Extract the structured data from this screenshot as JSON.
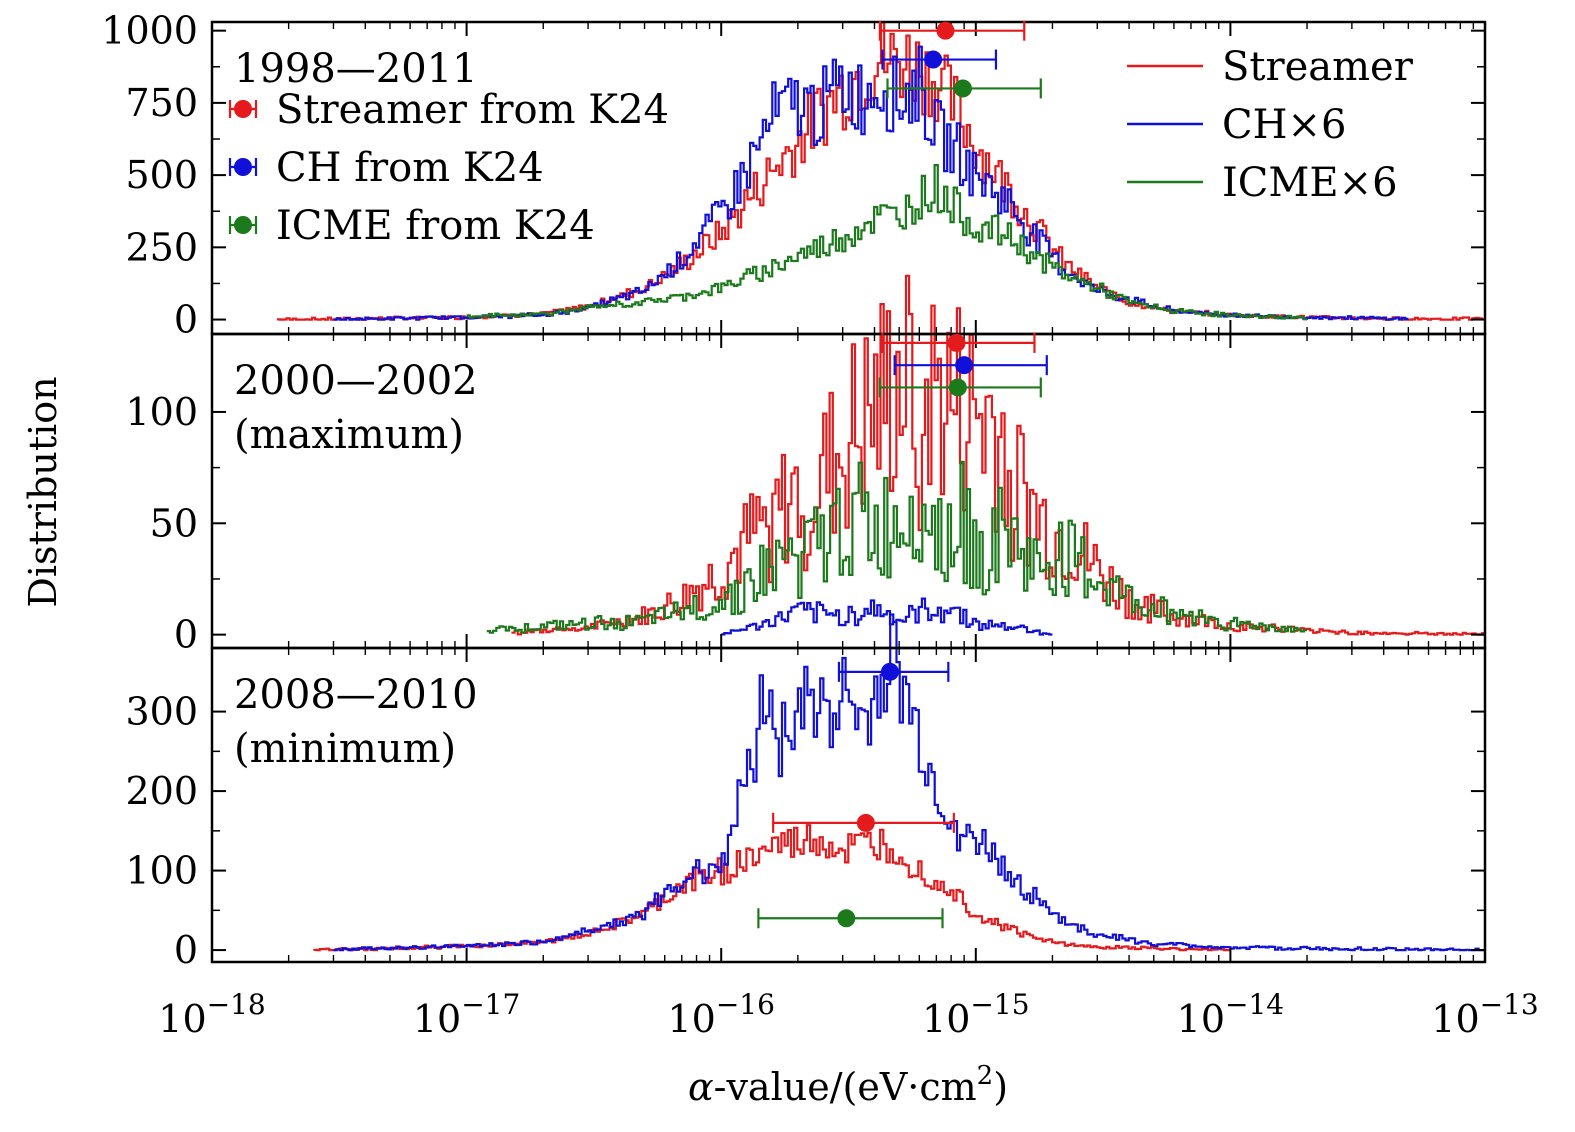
{
  "chart_data": {
    "type": "line",
    "x_scale": "log",
    "xlim": [
      1e-18,
      1e-13
    ],
    "x_ticks": [
      {
        "base": "10",
        "exp": "−18",
        "value": 1e-18
      },
      {
        "base": "10",
        "exp": "−17",
        "value": 1e-17
      },
      {
        "base": "10",
        "exp": "−16",
        "value": 1e-16
      },
      {
        "base": "10",
        "exp": "−15",
        "value": 1e-15
      },
      {
        "base": "10",
        "exp": "−14",
        "value": 1e-14
      },
      {
        "base": "10",
        "exp": "−13",
        "value": 1e-13
      }
    ],
    "xlabel": {
      "alpha": "α",
      "rest": "-value/(eV·cm",
      "sup": "2",
      "close": ")"
    },
    "ylabel": "Distribution",
    "colors": {
      "streamer": "#e41a1c",
      "ch": "#1010d8",
      "icme": "#1c7a1c"
    },
    "legend_lines": [
      {
        "key": "streamer",
        "label": "Streamer"
      },
      {
        "key": "ch",
        "label": "CH×6"
      },
      {
        "key": "icme",
        "label": "ICME×6"
      }
    ],
    "legend_points": [
      {
        "key": "streamer",
        "label": "Streamer from K24"
      },
      {
        "key": "ch",
        "label": "CH from K24"
      },
      {
        "key": "icme",
        "label": "ICME from K24"
      }
    ],
    "panels": [
      {
        "id": "all",
        "title_lines": [
          "1998—2011"
        ],
        "ylim": [
          -50,
          1030
        ],
        "yticks": [
          0,
          250,
          500,
          750,
          1000
        ],
        "yticks_labels": [
          "0",
          "250",
          "500",
          "750",
          "1000"
        ],
        "points": [
          {
            "key": "streamer",
            "x": 7.6e-16,
            "y": 1000,
            "xerr_lo": 4.2e-16,
            "xerr_hi": 1.55e-15
          },
          {
            "key": "ch",
            "x": 6.8e-16,
            "y": 900,
            "xerr_lo": 4.3e-16,
            "xerr_hi": 1.2e-15
          },
          {
            "key": "icme",
            "x": 8.9e-16,
            "y": 800,
            "xerr_lo": 4.5e-16,
            "xerr_hi": 1.8e-15
          }
        ],
        "series": [
          {
            "key": "streamer",
            "x": [
              1.8e-18,
              3e-18,
              1e-17,
              2e-17,
              3e-17,
              5e-17,
              7e-17,
              1e-16,
              1.4e-16,
              2e-16,
              2.6e-16,
              3.2e-16,
              4e-16,
              5e-16,
              6e-16,
              7e-16,
              8.5e-16,
              1e-15,
              1.3e-15,
              1.7e-15,
              2.2e-15,
              3e-15,
              4e-15,
              6e-15,
              1e-14,
              2e-14,
              4e-14,
              1e-13
            ],
            "y": [
              0,
              2,
              8,
              20,
              45,
              110,
              190,
              300,
              460,
              620,
              740,
              820,
              900,
              900,
              880,
              830,
              720,
              610,
              470,
              330,
              200,
              110,
              60,
              30,
              15,
              8,
              3,
              2
            ]
          },
          {
            "key": "ch",
            "x": [
              3e-18,
              1e-17,
              2e-17,
              3e-17,
              5e-17,
              7e-17,
              1e-16,
              1.3e-16,
              1.6e-16,
              2e-16,
              2.4e-16,
              3e-16,
              3.6e-16,
              4.2e-16,
              5e-16,
              6e-16,
              7e-16,
              8.5e-16,
              1e-15,
              1.3e-15,
              1.7e-15,
              2.2e-15,
              3e-15,
              4e-15,
              6e-15,
              1e-14,
              2e-14,
              5e-14
            ],
            "y": [
              0,
              8,
              15,
              40,
              100,
              210,
              370,
              540,
              700,
              750,
              720,
              810,
              770,
              830,
              760,
              820,
              650,
              580,
              500,
              420,
              290,
              180,
              100,
              70,
              30,
              15,
              8,
              3
            ]
          },
          {
            "key": "icme",
            "x": [
              1e-17,
              2e-17,
              3e-17,
              5e-17,
              7e-17,
              1e-16,
              1.4e-16,
              2e-16,
              2.6e-16,
              3.2e-16,
              4e-16,
              5e-16,
              6e-16,
              7e-16,
              8.5e-16,
              1e-15,
              1.3e-15,
              1.7e-15,
              2.2e-15,
              3e-15,
              4e-15,
              6e-15,
              1e-14,
              2e-14
            ],
            "y": [
              10,
              20,
              40,
              60,
              80,
              110,
              160,
              220,
              260,
              300,
              350,
              360,
              420,
              460,
              380,
              320,
              300,
              220,
              160,
              110,
              60,
              30,
              15,
              5
            ]
          }
        ]
      },
      {
        "id": "max",
        "title_lines": [
          "2000—2002",
          "(maximum)"
        ],
        "ylim": [
          -6,
          135
        ],
        "yticks": [
          0,
          50,
          100
        ],
        "yticks_labels": [
          "0",
          "50",
          "100"
        ],
        "points": [
          {
            "key": "streamer",
            "x": 8.4e-16,
            "y": 131,
            "xerr_lo": 4.3e-16,
            "xerr_hi": 1.7e-15
          },
          {
            "key": "ch",
            "x": 9e-16,
            "y": 121,
            "xerr_lo": 4.8e-16,
            "xerr_hi": 1.9e-15
          },
          {
            "key": "icme",
            "x": 8.5e-16,
            "y": 111,
            "xerr_lo": 4.2e-16,
            "xerr_hi": 1.8e-15
          }
        ],
        "series": [
          {
            "key": "streamer",
            "x": [
              1.5e-17,
              3e-17,
              5e-17,
              7e-17,
              1e-16,
              1.4e-16,
              2e-16,
              2.6e-16,
              3.2e-16,
              4e-16,
              5e-16,
              6e-16,
              7e-16,
              8.5e-16,
              1e-15,
              1.2e-15,
              1.4e-15,
              1.7e-15,
              2e-15,
              2.5e-15,
              3e-15,
              4e-15,
              6e-15,
              1e-14,
              2e-14,
              3e-14,
              1e-13
            ],
            "y": [
              1,
              3,
              8,
              15,
              28,
              45,
              60,
              70,
              85,
              95,
              110,
              100,
              105,
              98,
              95,
              92,
              70,
              52,
              45,
              38,
              28,
              15,
              8,
              4,
              2,
              1,
              0
            ]
          },
          {
            "key": "ch",
            "x": [
              1e-16,
              1.5e-16,
              2e-16,
              3e-16,
              4e-16,
              5e-16,
              6e-16,
              8e-16,
              1e-15,
              1.5e-15,
              2e-15
            ],
            "y": [
              0,
              5,
              10,
              8,
              12,
              6,
              10,
              12,
              5,
              3,
              0
            ]
          },
          {
            "key": "icme",
            "x": [
              1.2e-17,
              3e-17,
              5e-17,
              7e-17,
              1e-16,
              1.5e-16,
              2e-16,
              2.6e-16,
              3.2e-16,
              4e-16,
              5e-16,
              6e-16,
              7e-16,
              8.5e-16,
              1e-15,
              1.3e-15,
              1.7e-15,
              2.2e-15,
              3e-15,
              4e-15,
              6e-15,
              1e-14,
              2e-14
            ],
            "y": [
              2,
              5,
              6,
              10,
              15,
              28,
              35,
              40,
              55,
              45,
              50,
              70,
              45,
              55,
              35,
              45,
              30,
              35,
              25,
              15,
              10,
              5,
              2
            ]
          }
        ]
      },
      {
        "id": "min",
        "title_lines": [
          "2008—2010",
          "(minimum)"
        ],
        "ylim": [
          -15,
          380
        ],
        "yticks": [
          0,
          100,
          200,
          300
        ],
        "yticks_labels": [
          "0",
          "100",
          "200",
          "300"
        ],
        "points": [
          {
            "key": "ch",
            "x": 4.6e-16,
            "y": 350,
            "xerr_lo": 2.9e-16,
            "xerr_hi": 7.8e-16
          },
          {
            "key": "streamer",
            "x": 3.7e-16,
            "y": 160,
            "xerr_lo": 1.6e-16,
            "xerr_hi": 8.2e-16
          },
          {
            "key": "icme",
            "x": 3.1e-16,
            "y": 40,
            "xerr_lo": 1.4e-16,
            "xerr_hi": 7.4e-16
          }
        ],
        "series": [
          {
            "key": "streamer",
            "x": [
              2.5e-18,
              5e-18,
              1e-17,
              2e-17,
              3e-17,
              5e-17,
              7e-17,
              1e-16,
              1.3e-16,
              1.6e-16,
              2e-16,
              2.4e-16,
              3e-16,
              3.6e-16,
              4.2e-16,
              5e-16,
              6e-16,
              7e-16,
              8.5e-16,
              1e-15,
              1.3e-15,
              1.7e-15,
              2.2e-15,
              3e-15,
              5e-15,
              1e-14
            ],
            "y": [
              0,
              2,
              5,
              10,
              20,
              45,
              80,
              100,
              115,
              130,
              135,
              140,
              125,
              130,
              135,
              130,
              100,
              90,
              70,
              45,
              30,
              15,
              8,
              4,
              2,
              0
            ]
          },
          {
            "key": "ch",
            "x": [
              3e-18,
              5e-18,
              1e-17,
              2e-17,
              3e-17,
              5e-17,
              7e-17,
              1e-16,
              1.3e-16,
              1.5e-16,
              1.7e-16,
              2e-16,
              2.4e-16,
              3e-16,
              3.6e-16,
              4.2e-16,
              4.6e-16,
              5.5e-16,
              6.5e-16,
              7.5e-16,
              9e-16,
              1.1e-15,
              1.4e-15,
              1.8e-15,
              2.4e-15,
              3e-15,
              5e-15,
              1e-14,
              1e-13
            ],
            "y": [
              0,
              3,
              5,
              10,
              25,
              45,
              90,
              110,
              230,
              330,
              260,
              310,
              300,
              320,
              280,
              330,
              370,
              300,
              230,
              180,
              140,
              130,
              90,
              60,
              30,
              20,
              8,
              3,
              0
            ]
          }
        ]
      }
    ]
  }
}
